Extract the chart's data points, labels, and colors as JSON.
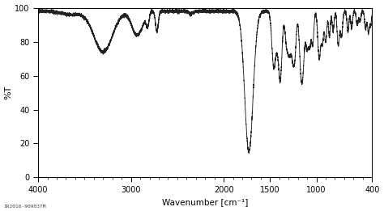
{
  "title": "",
  "xlabel": "Wavenumber [cm⁻¹]",
  "ylabel": "%T",
  "xlim": [
    4000,
    400
  ],
  "ylim": [
    0,
    100
  ],
  "xticks": [
    4000,
    3000,
    2000,
    1500,
    1000,
    400
  ],
  "yticks": [
    0,
    20,
    40,
    60,
    80,
    100
  ],
  "watermark": "IR2016-90903TM",
  "line_color": "#222222",
  "background_color": "#ffffff"
}
